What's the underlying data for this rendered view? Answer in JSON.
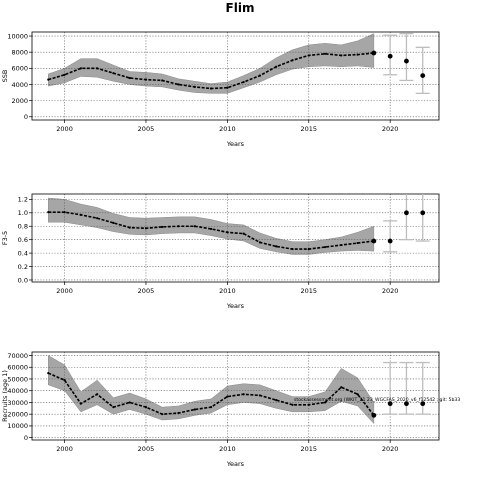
{
  "title": "Flim",
  "note": "stockassessment.org  (WKIT_21 23_WGCFAS_2020_v6_f12542 ; git: 5b33",
  "colors": {
    "band": "#a6a6a6",
    "line": "#000000",
    "grid": "#555555",
    "error_bar": "#bdbdbd"
  },
  "chart_data": [
    {
      "type": "line",
      "xlabel": "Years",
      "ylabel": "SSB",
      "xlim": [
        1998,
        2023
      ],
      "ylim": [
        -400,
        10500
      ],
      "xticks": [
        2000,
        2005,
        2010,
        2015,
        2020
      ],
      "yticks": [
        0,
        2000,
        4000,
        6000,
        8000,
        10000
      ],
      "grid": true,
      "years": [
        1999,
        2000,
        2001,
        2002,
        2003,
        2004,
        2005,
        2006,
        2007,
        2008,
        2009,
        2010,
        2011,
        2012,
        2013,
        2014,
        2015,
        2016,
        2017,
        2018,
        2019
      ],
      "estimate": [
        4600,
        5200,
        6000,
        6000,
        5400,
        4800,
        4600,
        4500,
        4000,
        3700,
        3500,
        3600,
        4300,
        5100,
        6200,
        7000,
        7600,
        7800,
        7600,
        7700,
        7900
      ],
      "lower": [
        3800,
        4200,
        5000,
        4900,
        4400,
        4000,
        3800,
        3700,
        3300,
        3000,
        2900,
        2900,
        3600,
        4300,
        5200,
        5900,
        6200,
        6300,
        6200,
        6300,
        6100
      ],
      "upper": [
        5300,
        6000,
        7200,
        7200,
        6400,
        5600,
        5500,
        5300,
        4700,
        4400,
        4100,
        4300,
        5100,
        6000,
        7300,
        8300,
        8900,
        9100,
        8900,
        9400,
        10300
      ],
      "projection": [
        {
          "year": 2020,
          "value": 7500,
          "lower": 5200,
          "upper": 10100
        },
        {
          "year": 2021,
          "value": 6900,
          "lower": 4500,
          "upper": 10300
        },
        {
          "year": 2022,
          "value": 5100,
          "lower": 2900,
          "upper": 8600
        }
      ]
    },
    {
      "type": "line",
      "xlabel": "Years",
      "ylabel": "F3-5",
      "xlim": [
        1998,
        2023
      ],
      "ylim": [
        -0.03,
        1.28
      ],
      "xticks": [
        2000,
        2005,
        2010,
        2015,
        2020
      ],
      "yticks": [
        0.0,
        0.2,
        0.4,
        0.6,
        0.8,
        1.0,
        1.2
      ],
      "yticklabels": [
        "0.0",
        "0.2",
        "0.4",
        "0.6",
        "0.8",
        "1.0",
        "1.2"
      ],
      "grid": true,
      "years": [
        1999,
        2000,
        2001,
        2002,
        2003,
        2004,
        2005,
        2006,
        2007,
        2008,
        2009,
        2010,
        2011,
        2012,
        2013,
        2014,
        2015,
        2016,
        2017,
        2018,
        2019
      ],
      "estimate": [
        1.01,
        1.01,
        0.97,
        0.92,
        0.85,
        0.78,
        0.77,
        0.79,
        0.8,
        0.8,
        0.76,
        0.71,
        0.69,
        0.56,
        0.5,
        0.46,
        0.46,
        0.49,
        0.52,
        0.55,
        0.58
      ],
      "lower": [
        0.86,
        0.86,
        0.82,
        0.78,
        0.72,
        0.68,
        0.67,
        0.69,
        0.7,
        0.7,
        0.66,
        0.61,
        0.58,
        0.47,
        0.42,
        0.38,
        0.38,
        0.41,
        0.43,
        0.44,
        0.43
      ],
      "upper": [
        1.22,
        1.2,
        1.13,
        1.08,
        0.99,
        0.93,
        0.92,
        0.93,
        0.94,
        0.94,
        0.9,
        0.84,
        0.82,
        0.7,
        0.62,
        0.57,
        0.57,
        0.6,
        0.64,
        0.71,
        0.8
      ],
      "projection": [
        {
          "year": 2020,
          "value": 0.58,
          "lower": 0.42,
          "upper": 0.88
        },
        {
          "year": 2021,
          "value": 1.0,
          "lower": 0.6,
          "upper": 1.3
        },
        {
          "year": 2022,
          "value": 1.0,
          "lower": 0.58,
          "upper": 1.3
        }
      ]
    },
    {
      "type": "line",
      "xlabel": "Years",
      "ylabel": "Recruits (age 1)",
      "xlim": [
        1998,
        2023
      ],
      "ylim": [
        -2000,
        73000
      ],
      "xticks": [
        2000,
        2005,
        2010,
        2015,
        2020
      ],
      "yticks": [
        0,
        10000,
        20000,
        30000,
        40000,
        50000,
        60000,
        70000
      ],
      "grid": true,
      "years": [
        1999,
        2000,
        2001,
        2002,
        2003,
        2004,
        2005,
        2006,
        2007,
        2008,
        2009,
        2010,
        2011,
        2012,
        2013,
        2014,
        2015,
        2016,
        2017,
        2018,
        2019
      ],
      "estimate": [
        55000,
        49000,
        29000,
        37000,
        26000,
        30000,
        26000,
        20000,
        21000,
        24000,
        26000,
        35000,
        37000,
        36000,
        32000,
        28000,
        28000,
        30000,
        43000,
        37000,
        19000
      ],
      "lower": [
        45000,
        40000,
        22000,
        28000,
        20000,
        24000,
        20000,
        15000,
        16000,
        19000,
        21000,
        28000,
        30000,
        29000,
        25000,
        22000,
        22000,
        23000,
        31000,
        27000,
        12000
      ],
      "upper": [
        70000,
        62000,
        39000,
        49000,
        34000,
        38000,
        33000,
        26000,
        27000,
        31000,
        33000,
        44000,
        46000,
        45000,
        40000,
        35000,
        35000,
        39000,
        59000,
        51000,
        30000
      ],
      "projection": [
        {
          "year": 2020,
          "value": 29000,
          "lower": 20000,
          "upper": 64000
        },
        {
          "year": 2021,
          "value": 29000,
          "lower": 20000,
          "upper": 64000
        },
        {
          "year": 2022,
          "value": 29000,
          "lower": 20000,
          "upper": 64000
        }
      ]
    }
  ]
}
